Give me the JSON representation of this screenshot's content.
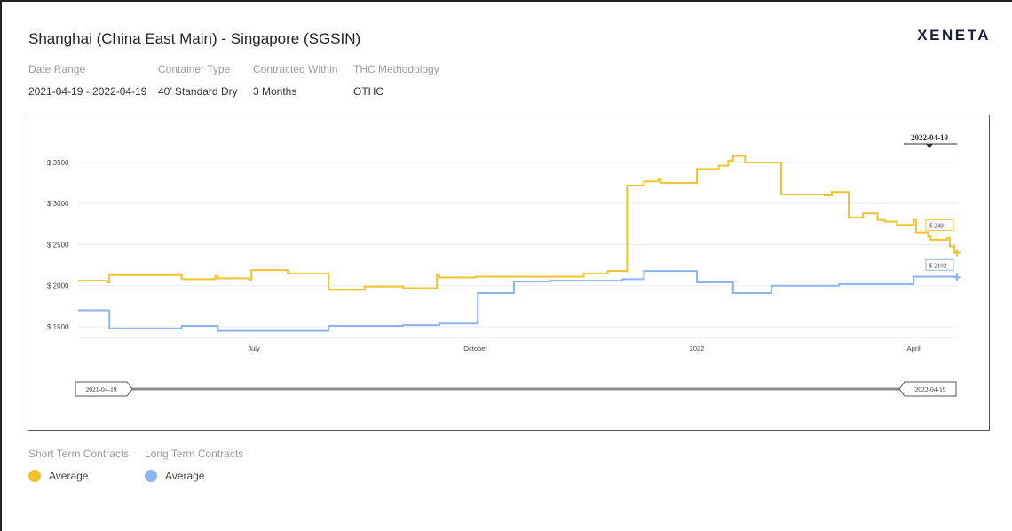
{
  "header": {
    "title": "Shanghai (China East Main) - Singapore (SGSIN)",
    "logo": "XENETA"
  },
  "filters": [
    {
      "label": "Date Range",
      "value": "2021-04-19 - 2022-04-19"
    },
    {
      "label": "Container Type",
      "value": "40’ Standard Dry"
    },
    {
      "label": "Contracted Within",
      "value": "3 Months"
    },
    {
      "label": "THC Methodology",
      "value": "OTHC"
    }
  ],
  "legend": {
    "short_term": {
      "heading": "Short Term Contracts",
      "label": "Average",
      "color": "#f2c12e"
    },
    "long_term": {
      "heading": "Long Term Contracts",
      "label": "Average",
      "color": "#8db4f2"
    }
  },
  "chart_data": {
    "type": "line",
    "y_tick_labels": [
      "$ 1500",
      "$ 2000",
      "$ 2500",
      "$ 3000",
      "$ 3500"
    ],
    "y_ticks": [
      1500,
      2000,
      2500,
      3000,
      3500
    ],
    "ylim": [
      1370,
      3640
    ],
    "x_tick_labels": [
      "July",
      "October",
      "2022",
      "April"
    ],
    "x_ticks": [
      "2021-07-01",
      "2021-10-01",
      "2022-01-01",
      "2022-04-01"
    ],
    "xlim": [
      "2021-04-19",
      "2022-04-19"
    ],
    "step": true,
    "grid": true,
    "hover_date": "2022-04-19",
    "navigator": {
      "start": "2021-04-19",
      "end": "2022-04-19"
    },
    "series": [
      {
        "name": "Short Term Contracts",
        "color": "#f2c12e",
        "end_label": "$ 2401",
        "points": [
          [
            "2021-04-19",
            2060
          ],
          [
            "2021-05-01",
            2040
          ],
          [
            "2021-05-02",
            2130
          ],
          [
            "2021-06-01",
            2080
          ],
          [
            "2021-06-15",
            2120
          ],
          [
            "2021-06-16",
            2090
          ],
          [
            "2021-06-29",
            2070
          ],
          [
            "2021-06-30",
            2190
          ],
          [
            "2021-07-15",
            2150
          ],
          [
            "2021-08-01",
            1950
          ],
          [
            "2021-08-16",
            1990
          ],
          [
            "2021-09-01",
            1970
          ],
          [
            "2021-09-15",
            2130
          ],
          [
            "2021-09-16",
            2100
          ],
          [
            "2021-10-01",
            2110
          ],
          [
            "2021-11-15",
            2150
          ],
          [
            "2021-11-25",
            2180
          ],
          [
            "2021-12-03",
            3220
          ],
          [
            "2021-12-10",
            3270
          ],
          [
            "2021-12-16",
            3300
          ],
          [
            "2021-12-17",
            3250
          ],
          [
            "2022-01-01",
            3420
          ],
          [
            "2022-01-10",
            3460
          ],
          [
            "2022-01-14",
            3520
          ],
          [
            "2022-01-16",
            3580
          ],
          [
            "2022-01-21",
            3500
          ],
          [
            "2022-02-05",
            3110
          ],
          [
            "2022-02-23",
            3100
          ],
          [
            "2022-02-26",
            3140
          ],
          [
            "2022-03-05",
            2830
          ],
          [
            "2022-03-11",
            2880
          ],
          [
            "2022-03-17",
            2800
          ],
          [
            "2022-03-20",
            2780
          ],
          [
            "2022-03-25",
            2740
          ],
          [
            "2022-04-01",
            2800
          ],
          [
            "2022-04-02",
            2650
          ],
          [
            "2022-04-07",
            2600
          ],
          [
            "2022-04-08",
            2560
          ],
          [
            "2022-04-15",
            2580
          ],
          [
            "2022-04-16",
            2480
          ],
          [
            "2022-04-18",
            2410
          ],
          [
            "2022-04-19",
            2401
          ]
        ]
      },
      {
        "name": "Long Term Contracts",
        "color": "#8db4f2",
        "end_label": "$ 2102",
        "points": [
          [
            "2021-04-19",
            1700
          ],
          [
            "2021-05-02",
            1480
          ],
          [
            "2021-06-01",
            1510
          ],
          [
            "2021-06-16",
            1450
          ],
          [
            "2021-08-01",
            1510
          ],
          [
            "2021-09-01",
            1520
          ],
          [
            "2021-09-16",
            1540
          ],
          [
            "2021-10-02",
            1910
          ],
          [
            "2021-10-17",
            2050
          ],
          [
            "2021-11-01",
            2060
          ],
          [
            "2021-12-01",
            2080
          ],
          [
            "2021-12-10",
            2180
          ],
          [
            "2022-01-01",
            2040
          ],
          [
            "2022-01-16",
            1910
          ],
          [
            "2022-02-01",
            2000
          ],
          [
            "2022-03-01",
            2020
          ],
          [
            "2022-04-01",
            2110
          ],
          [
            "2022-04-19",
            2102
          ]
        ]
      }
    ]
  }
}
